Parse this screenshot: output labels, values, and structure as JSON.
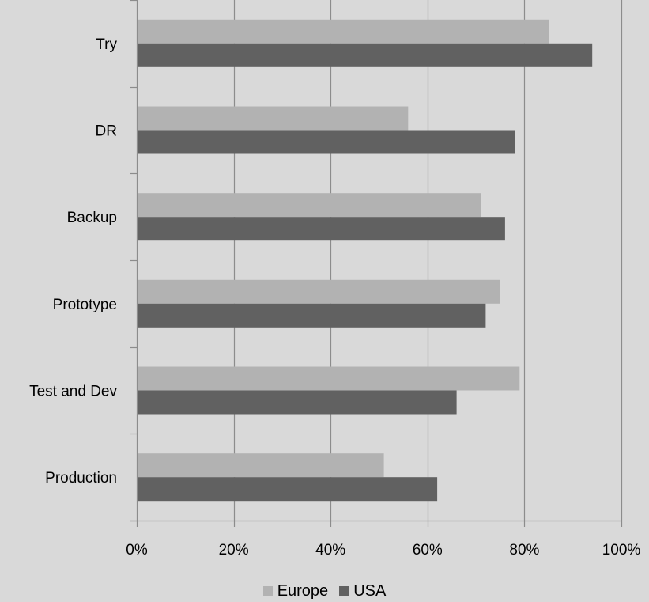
{
  "chart_data": {
    "type": "bar",
    "orientation": "horizontal",
    "categories": [
      "Try",
      "DR",
      "Backup",
      "Prototype",
      "Test and Dev",
      "Production"
    ],
    "series": [
      {
        "name": "Europe",
        "color": "#b2b2b2",
        "values": [
          85,
          56,
          71,
          75,
          79,
          51
        ]
      },
      {
        "name": "USA",
        "color": "#616161",
        "values": [
          94,
          78,
          76,
          72,
          66,
          62
        ]
      }
    ],
    "xlim": [
      0,
      100
    ],
    "x_ticks": [
      0,
      20,
      40,
      60,
      80,
      100
    ],
    "x_tick_labels": [
      "0%",
      "20%",
      "40%",
      "60%",
      "80%",
      "100%"
    ],
    "grid": true,
    "legend_position": "bottom",
    "background_color": "#d9d9d9",
    "gridline_color": "#8c8c8c"
  }
}
